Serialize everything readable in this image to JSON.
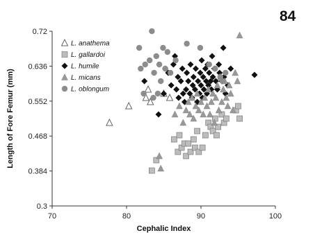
{
  "page_number": "84",
  "chart_data": {
    "type": "scatter",
    "title": "",
    "xlabel": "Cephalic Index",
    "ylabel": "Length of Fore Femur (mm)",
    "xlim": [
      70,
      100
    ],
    "ylim": [
      0.3,
      0.72
    ],
    "xticks": [
      70,
      80,
      90,
      100
    ],
    "yticks": [
      0.3,
      0.384,
      0.468,
      0.552,
      0.636,
      0.72
    ],
    "xtick_labels": [
      "70",
      "80",
      "90",
      "100"
    ],
    "ytick_labels": [
      "0.3",
      "0.384",
      "0.468",
      "0.552",
      "0.636",
      "0.72"
    ],
    "grid": false,
    "legend_position": "top-left",
    "series": [
      {
        "name": "L. anathema",
        "marker": "triangle-open",
        "color": "#666666",
        "points": [
          [
            77.7,
            0.5
          ],
          [
            80.3,
            0.54
          ],
          [
            82.6,
            0.56
          ],
          [
            82.9,
            0.58
          ],
          [
            83.2,
            0.55
          ],
          [
            85.0,
            0.57
          ],
          [
            85.8,
            0.56
          ]
        ]
      },
      {
        "name": "L. gallardoi",
        "marker": "square",
        "color": "#bdbdbd",
        "points": [
          [
            83.4,
            0.385
          ],
          [
            84.0,
            0.41
          ],
          [
            86.4,
            0.46
          ],
          [
            86.9,
            0.43
          ],
          [
            87.1,
            0.47
          ],
          [
            87.4,
            0.44
          ],
          [
            87.8,
            0.45
          ],
          [
            88.0,
            0.42
          ],
          [
            88.3,
            0.45
          ],
          [
            88.6,
            0.43
          ],
          [
            89.0,
            0.46
          ],
          [
            89.2,
            0.44
          ],
          [
            89.5,
            0.48
          ],
          [
            89.7,
            0.43
          ],
          [
            90.2,
            0.44
          ],
          [
            90.6,
            0.47
          ],
          [
            91.0,
            0.5
          ],
          [
            91.3,
            0.49
          ],
          [
            91.6,
            0.48
          ],
          [
            91.9,
            0.51
          ],
          [
            92.1,
            0.47
          ],
          [
            92.3,
            0.49
          ],
          [
            92.8,
            0.52
          ],
          [
            93.1,
            0.5
          ],
          [
            93.4,
            0.51
          ],
          [
            94.7,
            0.53
          ],
          [
            95.0,
            0.54
          ],
          [
            95.2,
            0.51
          ]
        ]
      },
      {
        "name": "L. humile",
        "marker": "diamond",
        "color": "#111111",
        "points": [
          [
            82.4,
            0.6
          ],
          [
            84.3,
            0.52
          ],
          [
            85.0,
            0.57
          ],
          [
            85.2,
            0.63
          ],
          [
            85.6,
            0.62
          ],
          [
            86.0,
            0.59
          ],
          [
            86.3,
            0.64
          ],
          [
            86.5,
            0.66
          ],
          [
            86.7,
            0.58
          ],
          [
            86.9,
            0.61
          ],
          [
            87.0,
            0.56
          ],
          [
            87.3,
            0.6
          ],
          [
            87.5,
            0.63
          ],
          [
            87.6,
            0.57
          ],
          [
            87.8,
            0.55
          ],
          [
            88.0,
            0.58
          ],
          [
            88.1,
            0.62
          ],
          [
            88.3,
            0.6
          ],
          [
            88.5,
            0.57
          ],
          [
            88.6,
            0.64
          ],
          [
            88.8,
            0.56
          ],
          [
            88.9,
            0.59
          ],
          [
            89.0,
            0.61
          ],
          [
            89.2,
            0.58
          ],
          [
            89.3,
            0.63
          ],
          [
            89.5,
            0.55
          ],
          [
            89.6,
            0.6
          ],
          [
            89.8,
            0.57
          ],
          [
            89.9,
            0.62
          ],
          [
            90.0,
            0.59
          ],
          [
            90.1,
            0.65
          ],
          [
            90.2,
            0.56
          ],
          [
            90.3,
            0.61
          ],
          [
            90.4,
            0.58
          ],
          [
            90.6,
            0.63
          ],
          [
            90.7,
            0.6
          ],
          [
            90.8,
            0.57
          ],
          [
            90.9,
            0.64
          ],
          [
            91.0,
            0.59
          ],
          [
            91.1,
            0.62
          ],
          [
            91.3,
            0.6
          ],
          [
            91.4,
            0.58
          ],
          [
            91.5,
            0.66
          ],
          [
            91.6,
            0.61
          ],
          [
            91.8,
            0.63
          ],
          [
            92.0,
            0.6
          ],
          [
            92.2,
            0.58
          ],
          [
            92.4,
            0.64
          ],
          [
            92.5,
            0.62
          ],
          [
            92.8,
            0.6
          ],
          [
            93.0,
            0.68
          ],
          [
            93.1,
            0.61
          ],
          [
            93.3,
            0.57
          ],
          [
            93.6,
            0.59
          ],
          [
            94.0,
            0.63
          ],
          [
            97.2,
            0.615
          ]
        ]
      },
      {
        "name": "L. micans",
        "marker": "triangle",
        "color": "#999999",
        "points": [
          [
            84.4,
            0.42
          ],
          [
            84.6,
            0.39
          ],
          [
            86.5,
            0.52
          ],
          [
            87.1,
            0.54
          ],
          [
            87.6,
            0.5
          ],
          [
            88.0,
            0.53
          ],
          [
            88.3,
            0.55
          ],
          [
            88.5,
            0.52
          ],
          [
            88.8,
            0.56
          ],
          [
            89.0,
            0.51
          ],
          [
            89.3,
            0.54
          ],
          [
            89.5,
            0.57
          ],
          [
            89.7,
            0.53
          ],
          [
            90.0,
            0.55
          ],
          [
            90.3,
            0.52
          ],
          [
            90.5,
            0.56
          ],
          [
            90.8,
            0.54
          ],
          [
            91.0,
            0.58
          ],
          [
            91.2,
            0.52
          ],
          [
            91.4,
            0.55
          ],
          [
            91.6,
            0.57
          ],
          [
            91.8,
            0.5
          ],
          [
            92.0,
            0.56
          ],
          [
            92.2,
            0.59
          ],
          [
            92.4,
            0.53
          ],
          [
            92.6,
            0.61
          ],
          [
            92.8,
            0.55
          ],
          [
            93.0,
            0.58
          ],
          [
            93.2,
            0.6
          ],
          [
            93.4,
            0.56
          ],
          [
            93.6,
            0.54
          ],
          [
            93.8,
            0.59
          ],
          [
            94.0,
            0.57
          ],
          [
            94.3,
            0.53
          ],
          [
            94.6,
            0.62
          ],
          [
            94.9,
            0.6
          ],
          [
            95.2,
            0.71
          ]
        ]
      },
      {
        "name": "L. oblongum",
        "marker": "circle",
        "color": "#8c8c8c",
        "points": [
          [
            81.7,
            0.68
          ],
          [
            81.9,
            0.63
          ],
          [
            82.3,
            0.57
          ],
          [
            82.5,
            0.64
          ],
          [
            83.1,
            0.65
          ],
          [
            83.4,
            0.72
          ],
          [
            83.7,
            0.62
          ],
          [
            84.0,
            0.66
          ],
          [
            84.4,
            0.64
          ],
          [
            84.6,
            0.6
          ],
          [
            84.9,
            0.68
          ],
          [
            85.2,
            0.63
          ],
          [
            85.5,
            0.67
          ],
          [
            85.9,
            0.62
          ],
          [
            86.6,
            0.65
          ],
          [
            88.1,
            0.69
          ],
          [
            89.9,
            0.68
          ],
          [
            91.1,
            0.64
          ],
          [
            91.9,
            0.63
          ],
          [
            92.6,
            0.61
          ],
          [
            92.9,
            0.6
          ],
          [
            93.3,
            0.62
          ],
          [
            84.2,
            0.57
          ],
          [
            83.6,
            0.56
          ]
        ]
      }
    ]
  }
}
